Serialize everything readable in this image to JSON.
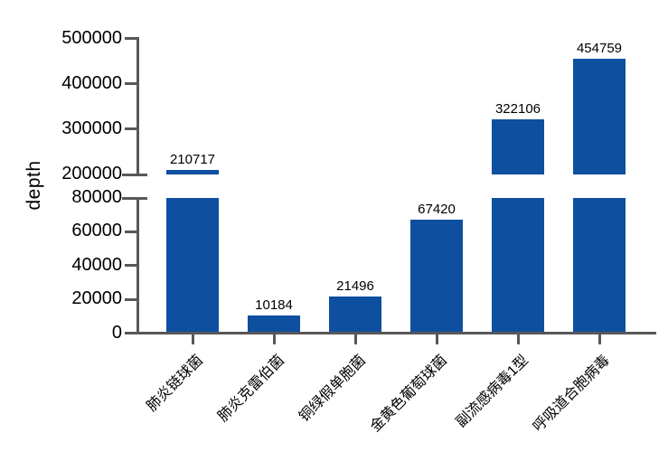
{
  "chart_data": {
    "type": "bar",
    "title": "",
    "ylabel": "depth",
    "xlabel": "",
    "categories": [
      "肺炎链球菌",
      "肺炎克雷伯菌",
      "铜绿假单胞菌",
      "金黄色葡萄球菌",
      "副流感病毒1型",
      "呼吸道合胞病毒"
    ],
    "values": [
      210717,
      10184,
      21496,
      67420,
      322106,
      454759
    ],
    "value_labels": [
      "210717",
      "10184",
      "21496",
      "67420",
      "322106",
      "454759"
    ],
    "broken_axis": true,
    "axis_segments": [
      {
        "range": [
          0,
          80000
        ],
        "ticks": [
          0,
          20000,
          40000,
          60000,
          80000
        ]
      },
      {
        "range": [
          200000,
          500000
        ],
        "ticks": [
          200000,
          300000,
          400000,
          500000
        ]
      }
    ],
    "grid": false,
    "legend": "none",
    "colors": {
      "bar": "#0e4fa0",
      "axis": "#58585a",
      "text": "#000000",
      "background": "#ffffff"
    }
  }
}
